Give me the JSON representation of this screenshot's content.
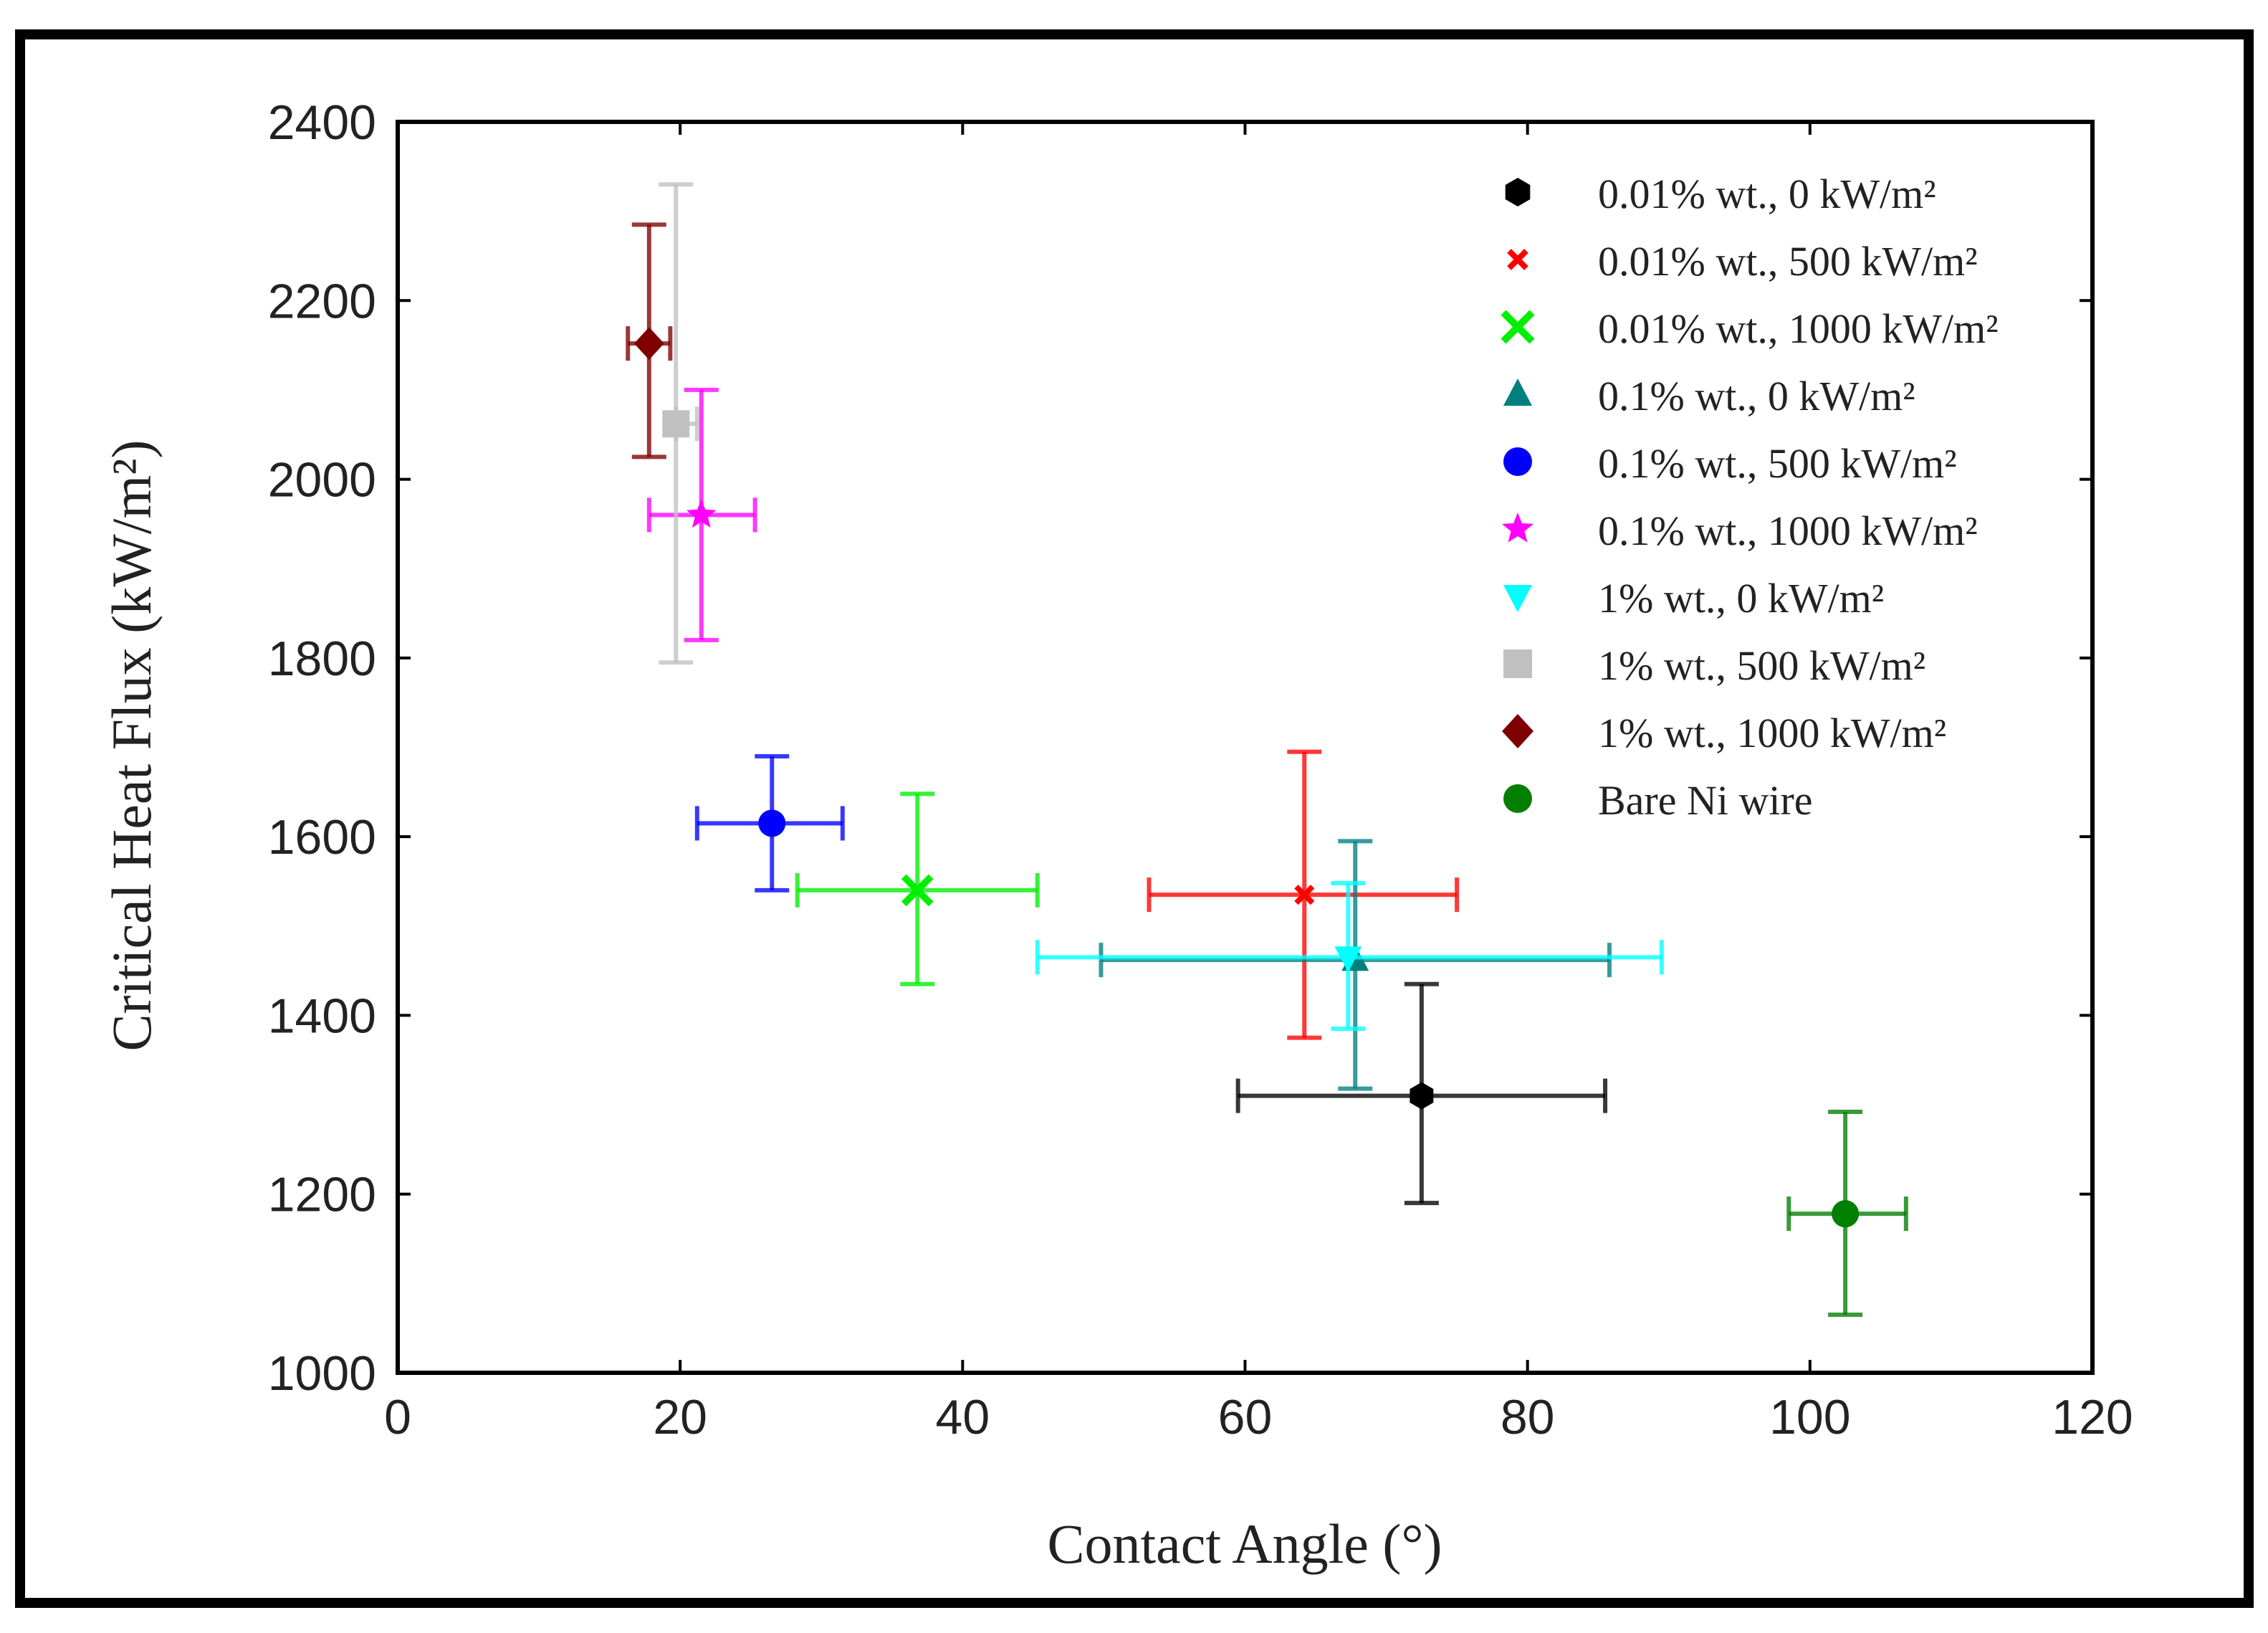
{
  "chart_data": {
    "type": "scatter",
    "xlabel": "Contact Angle (°)",
    "ylabel": "Critical Heat Flux (kW/m²)",
    "xlim": [
      0,
      120
    ],
    "ylim": [
      1000,
      2400
    ],
    "xticks": [
      0,
      20,
      40,
      60,
      80,
      100,
      120
    ],
    "yticks": [
      1000,
      1200,
      1400,
      1600,
      1800,
      2000,
      2200,
      2400
    ],
    "legend_position": "top-right",
    "series": [
      {
        "name": "0.01% wt., 0 kW/m²",
        "marker": "hexagon",
        "color": "#000000",
        "x": 72.5,
        "y": 1310,
        "xerr": [
          59.5,
          85.5
        ],
        "yerr": [
          1190,
          1435
        ]
      },
      {
        "name": "0.01% wt., 500 kW/m²",
        "marker": "small-x",
        "color": "#ff0000",
        "x": 64.2,
        "y": 1535,
        "xerr": [
          53.2,
          75.0
        ],
        "yerr": [
          1375,
          1695
        ]
      },
      {
        "name": "0.01% wt., 1000 kW/m²",
        "marker": "x",
        "color": "#00ee00",
        "x": 36.8,
        "y": 1540,
        "xerr": [
          28.3,
          45.3
        ],
        "yerr": [
          1435,
          1648
        ]
      },
      {
        "name": "0.1% wt., 0 kW/m²",
        "marker": "triangle-up",
        "color": "#007f7f",
        "x": 67.8,
        "y": 1462,
        "xerr": [
          49.8,
          85.8
        ],
        "yerr": [
          1318,
          1595
        ]
      },
      {
        "name": "0.1% wt., 500 kW/m²",
        "marker": "circle",
        "color": "#0000ff",
        "x": 26.5,
        "y": 1615,
        "xerr": [
          21.2,
          31.5
        ],
        "yerr": [
          1540,
          1690
        ]
      },
      {
        "name": "0.1% wt., 1000 kW/m²",
        "marker": "star",
        "color": "#ff00ff",
        "x": 21.5,
        "y": 1960,
        "xerr": [
          17.8,
          25.3
        ],
        "yerr": [
          1820,
          2100
        ]
      },
      {
        "name": "1% wt., 0 kW/m²",
        "marker": "triangle-down",
        "color": "#00ffff",
        "x": 67.3,
        "y": 1465,
        "xerr": [
          45.3,
          89.5
        ],
        "yerr": [
          1385,
          1548
        ]
      },
      {
        "name": "1% wt., 500 kW/m²",
        "marker": "square",
        "color": "#c0c0c0",
        "x": 19.7,
        "y": 2062,
        "xerr": [
          19.7,
          21.2
        ],
        "yerr": [
          1795,
          2330
        ]
      },
      {
        "name": "1% wt., 1000 kW/m²",
        "marker": "diamond",
        "color": "#7f0000",
        "x": 17.8,
        "y": 2152,
        "xerr": [
          16.3,
          19.3
        ],
        "yerr": [
          2025,
          2285
        ]
      },
      {
        "name": "Bare Ni wire",
        "marker": "circle",
        "color": "#007f00",
        "x": 102.5,
        "y": 1178,
        "xerr": [
          98.5,
          106.8
        ],
        "yerr": [
          1065,
          1292
        ]
      }
    ]
  }
}
